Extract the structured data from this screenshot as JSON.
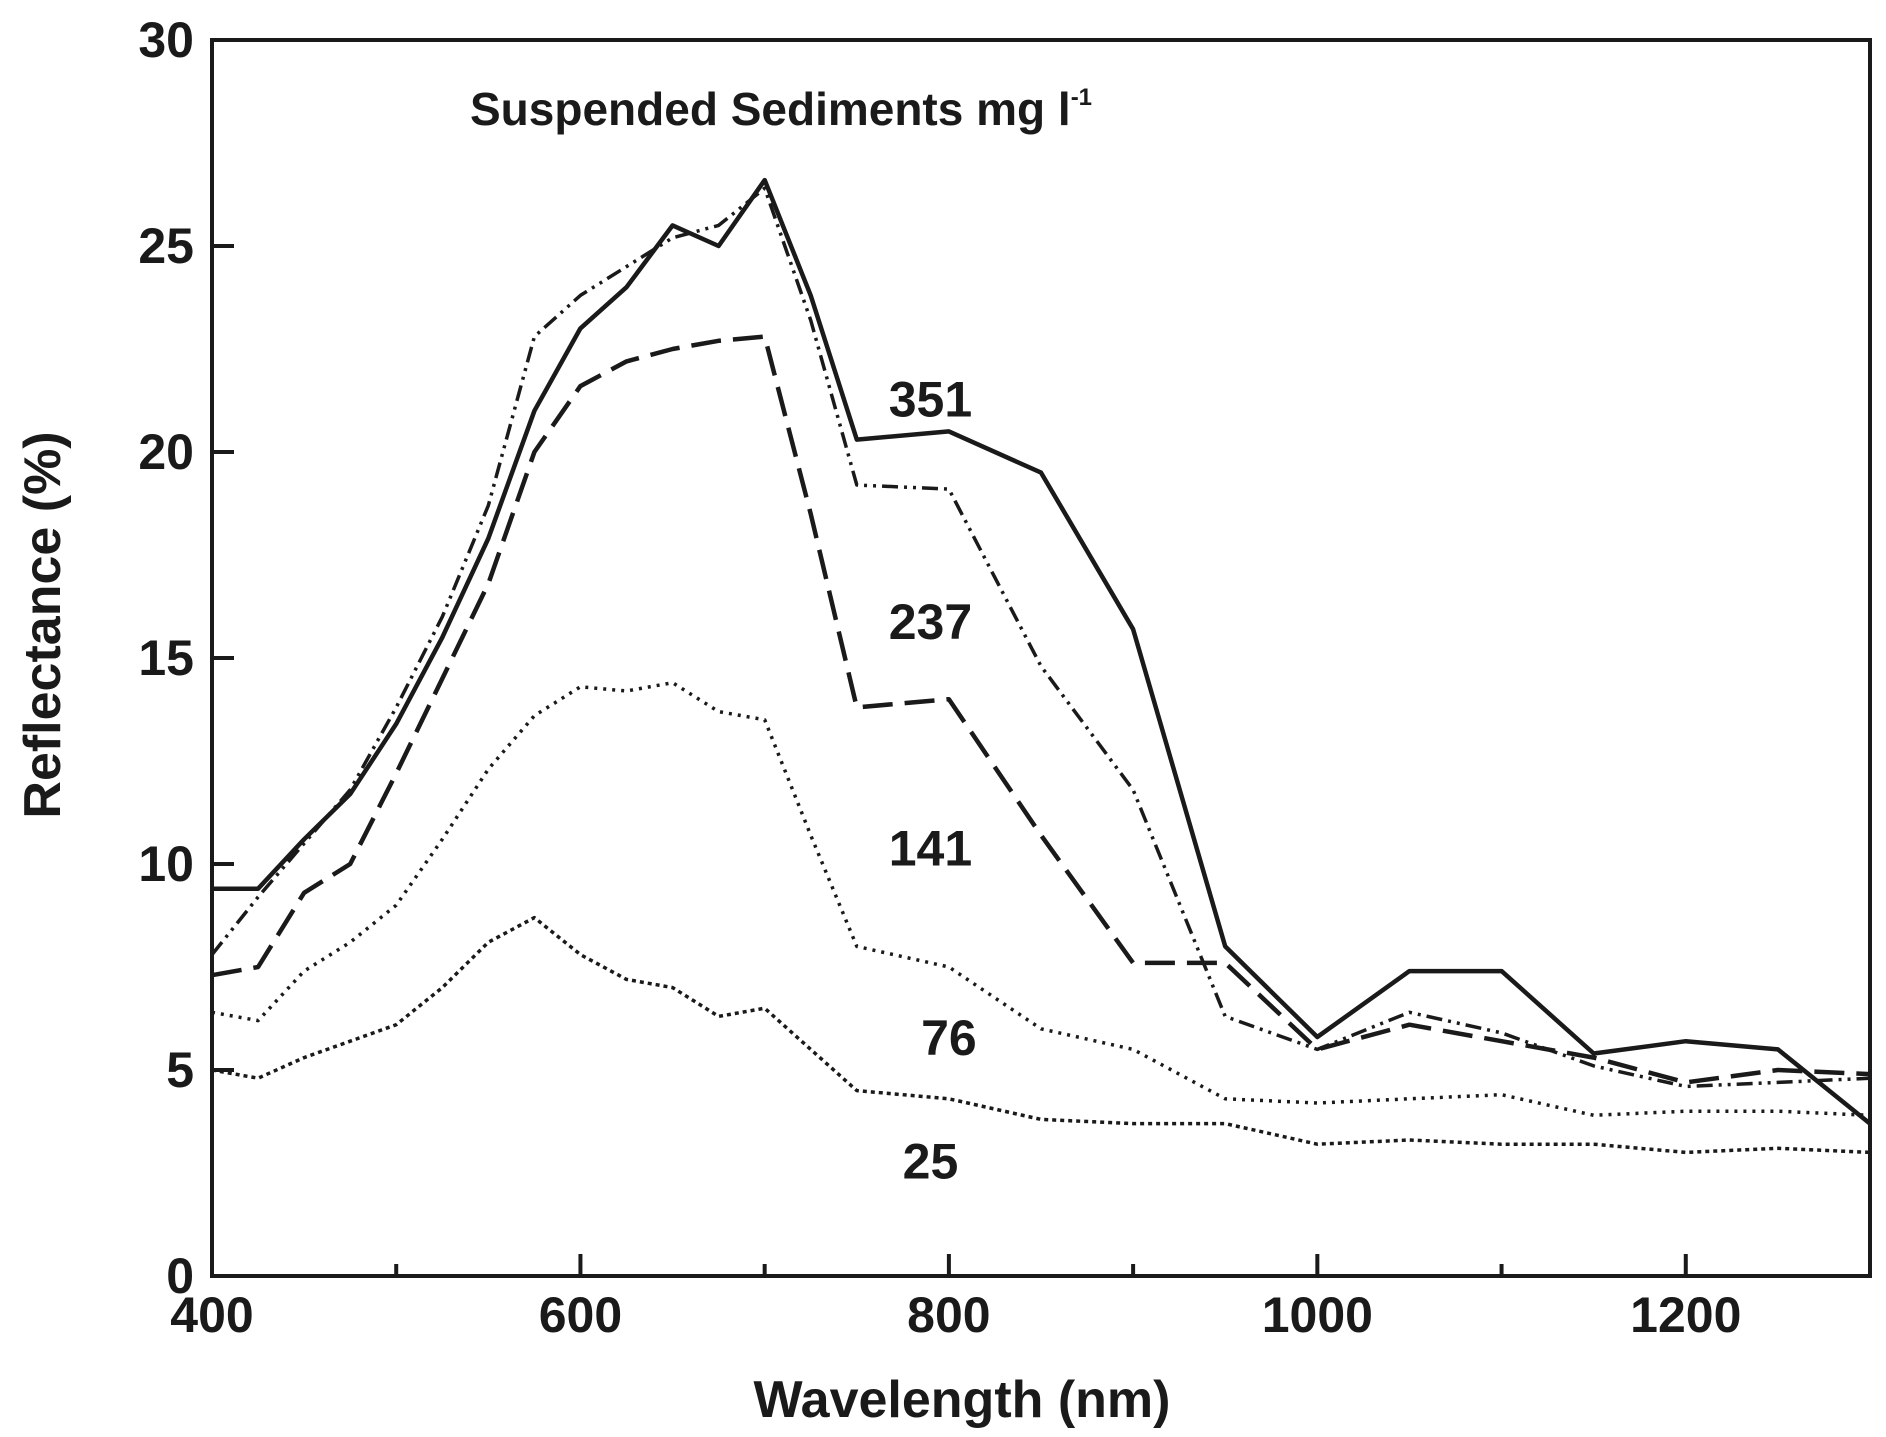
{
  "chart_data": {
    "type": "line",
    "title": "Suspended Sediments mg l",
    "title_superscript": "-1",
    "xlabel": "Wavelength (nm)",
    "ylabel": "Reflectance (%)",
    "xlim": [
      400,
      1300
    ],
    "ylim": [
      0,
      30
    ],
    "xticks": [
      400,
      600,
      800,
      1000,
      1200
    ],
    "yticks": [
      0,
      5,
      10,
      15,
      20,
      25,
      30
    ],
    "xtick_labels": [
      "400",
      "600",
      "800",
      "1000",
      "1200"
    ],
    "ytick_labels": [
      "0",
      "5",
      "10",
      "15",
      "20",
      "25",
      "30"
    ],
    "grid": false,
    "series": [
      {
        "name": "351",
        "label_at": [
          790,
          21.3
        ],
        "style": "solid",
        "x": [
          400,
          425,
          450,
          475,
          500,
          525,
          550,
          575,
          600,
          625,
          650,
          675,
          700,
          725,
          750,
          800,
          850,
          900,
          950,
          1000,
          1050,
          1100,
          1150,
          1200,
          1250,
          1300
        ],
        "y": [
          9.4,
          9.4,
          10.6,
          11.7,
          13.4,
          15.5,
          17.9,
          21.0,
          23.0,
          24.0,
          25.5,
          25.0,
          26.6,
          23.8,
          20.3,
          20.5,
          19.5,
          15.7,
          8.0,
          5.8,
          7.4,
          7.4,
          5.4,
          5.7,
          5.5,
          3.7
        ]
      },
      {
        "name": "237",
        "label_at": [
          790,
          15.9
        ],
        "style": "dash-dot-dot",
        "x": [
          400,
          425,
          450,
          475,
          500,
          525,
          550,
          575,
          600,
          625,
          650,
          675,
          700,
          725,
          750,
          800,
          850,
          900,
          950,
          1000,
          1050,
          1100,
          1150,
          1200,
          1250,
          1300
        ],
        "y": [
          7.8,
          9.2,
          10.5,
          11.8,
          13.8,
          16.0,
          18.7,
          22.8,
          23.8,
          24.5,
          25.2,
          25.5,
          26.4,
          23.2,
          19.2,
          19.1,
          14.8,
          11.8,
          6.3,
          5.5,
          6.4,
          5.9,
          5.1,
          4.6,
          4.7,
          4.8
        ]
      },
      {
        "name": "141",
        "label_at": [
          790,
          10.4
        ],
        "style": "long-dash",
        "x": [
          400,
          425,
          450,
          475,
          500,
          525,
          550,
          575,
          600,
          625,
          650,
          675,
          700,
          725,
          750,
          800,
          850,
          900,
          950,
          1000,
          1050,
          1100,
          1150,
          1200,
          1250,
          1300
        ],
        "y": [
          7.3,
          7.5,
          9.3,
          10.0,
          12.2,
          14.5,
          16.8,
          20.0,
          21.6,
          22.2,
          22.5,
          22.7,
          22.8,
          18.5,
          13.8,
          14.0,
          10.7,
          7.6,
          7.6,
          5.5,
          6.1,
          5.7,
          5.3,
          4.7,
          5.0,
          4.9
        ]
      },
      {
        "name": "76",
        "label_at": [
          800,
          5.8
        ],
        "style": "dotted",
        "x": [
          400,
          425,
          450,
          475,
          500,
          525,
          550,
          575,
          600,
          625,
          650,
          675,
          700,
          725,
          750,
          800,
          850,
          900,
          950,
          1000,
          1050,
          1100,
          1150,
          1200,
          1250,
          1300
        ],
        "y": [
          6.4,
          6.2,
          7.4,
          8.1,
          9.0,
          10.6,
          12.3,
          13.6,
          14.3,
          14.2,
          14.4,
          13.7,
          13.5,
          10.7,
          8.0,
          7.5,
          6.0,
          5.5,
          4.3,
          4.2,
          4.3,
          4.4,
          3.9,
          4.0,
          4.0,
          3.9
        ]
      },
      {
        "name": "25",
        "label_at": [
          790,
          2.8
        ],
        "style": "fine-dotted",
        "x": [
          400,
          425,
          450,
          475,
          500,
          525,
          550,
          575,
          600,
          625,
          650,
          675,
          700,
          725,
          750,
          800,
          850,
          900,
          950,
          1000,
          1050,
          1100,
          1150,
          1200,
          1250,
          1300
        ],
        "y": [
          5.0,
          4.8,
          5.3,
          5.7,
          6.1,
          7.0,
          8.1,
          8.7,
          7.8,
          7.2,
          7.0,
          6.3,
          6.5,
          5.5,
          4.5,
          4.3,
          3.8,
          3.7,
          3.7,
          3.2,
          3.3,
          3.2,
          3.2,
          3.0,
          3.1,
          3.0
        ]
      }
    ]
  }
}
